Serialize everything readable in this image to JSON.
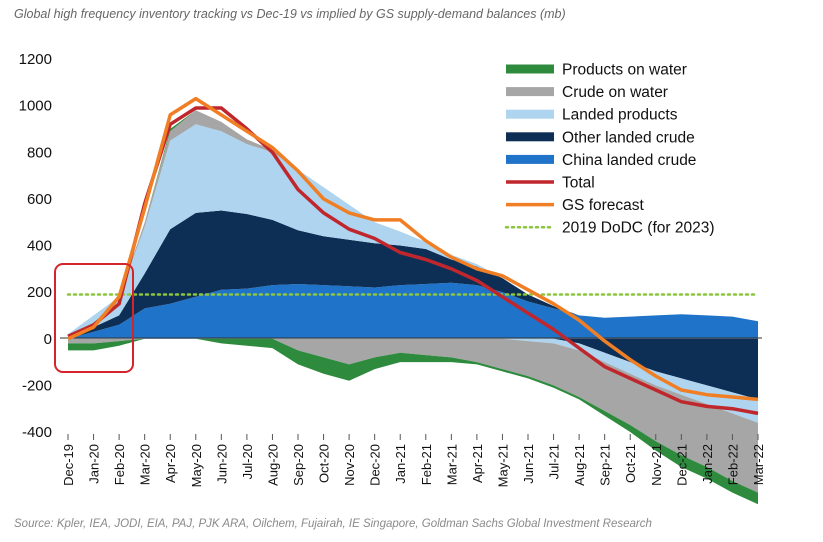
{
  "chart_data": {
    "type": "area",
    "title": "Global high frequency inventory tracking vs Dec-19 vs implied by GS supply-demand balances (mb)",
    "source": "Source: Kpler, IEA, JODI, EIA, PAJ, PJK ARA, Oilchem, Fujairah, IE Singapore, Goldman Sachs Global Investment Research",
    "ylim": [
      -400,
      1200
    ],
    "yticks": [
      "1200",
      "1000",
      "800",
      "600",
      "400",
      "200",
      "0",
      "-200",
      "-400"
    ],
    "ytick_values": [
      1200,
      1000,
      800,
      600,
      400,
      200,
      0,
      -200,
      -400
    ],
    "categories": [
      "Dec-19",
      "Jan-20",
      "Feb-20",
      "Mar-20",
      "Apr-20",
      "May-20",
      "Jun-20",
      "Jul-20",
      "Aug-20",
      "Sep-20",
      "Oct-20",
      "Nov-20",
      "Dec-20",
      "Jan-21",
      "Feb-21",
      "Mar-21",
      "Apr-21",
      "May-21",
      "Jun-21",
      "Jul-21",
      "Aug-21",
      "Sep-21",
      "Oct-21",
      "Nov-21",
      "Dec-21",
      "Jan-22",
      "Feb-22",
      "Mar-22"
    ],
    "colors": {
      "products_on_water": "#2e8b3e",
      "crude_on_water": "#a6a6a6",
      "landed_products": "#aed4ef",
      "other_landed_crude": "#0e2f55",
      "china_landed_crude": "#1f74c9",
      "total": "#c0272d",
      "gs_forecast": "#f07e24",
      "dodc": "#8cc63f",
      "highlight_box": "#d6242c"
    },
    "legend": [
      {
        "key": "products_on_water",
        "label": "Products on water",
        "kind": "area"
      },
      {
        "key": "crude_on_water",
        "label": "Crude on water",
        "kind": "area"
      },
      {
        "key": "landed_products",
        "label": "Landed products",
        "kind": "area"
      },
      {
        "key": "other_landed_crude",
        "label": "Other landed crude",
        "kind": "area"
      },
      {
        "key": "china_landed_crude",
        "label": "China landed crude",
        "kind": "area"
      },
      {
        "key": "total",
        "label": "Total",
        "kind": "line"
      },
      {
        "key": "gs_forecast",
        "label": "GS forecast",
        "kind": "line"
      },
      {
        "key": "dodc",
        "label": "2019 DoDC  (for 2023)",
        "kind": "dotted"
      }
    ],
    "legend_position": "top-right",
    "series": {
      "china_landed_crude": [
        0,
        30,
        60,
        130,
        150,
        180,
        210,
        215,
        230,
        235,
        230,
        225,
        220,
        230,
        235,
        240,
        230,
        200,
        160,
        130,
        100,
        90,
        95,
        100,
        105,
        100,
        95,
        75
      ],
      "other_landed_crude": [
        0,
        20,
        40,
        150,
        320,
        360,
        340,
        320,
        280,
        230,
        210,
        200,
        190,
        170,
        150,
        100,
        80,
        60,
        30,
        10,
        -20,
        -60,
        -100,
        -140,
        -170,
        -200,
        -230,
        -260
      ],
      "landed_products": [
        20,
        50,
        80,
        200,
        380,
        380,
        340,
        300,
        290,
        260,
        210,
        150,
        90,
        60,
        30,
        20,
        10,
        0,
        -10,
        -20,
        -30,
        -40,
        -50,
        -60,
        -70,
        -80,
        -90,
        -100
      ],
      "crude_on_water": [
        -20,
        -20,
        -10,
        20,
        40,
        60,
        40,
        20,
        10,
        -50,
        -80,
        -110,
        -80,
        -60,
        -70,
        -80,
        -100,
        -130,
        -150,
        -180,
        -200,
        -210,
        -220,
        -240,
        -260,
        -270,
        -290,
        -300
      ],
      "products_on_water": [
        -30,
        -30,
        -20,
        0,
        10,
        0,
        -20,
        -30,
        -40,
        -60,
        -70,
        -70,
        -50,
        -40,
        -30,
        -20,
        -10,
        -10,
        -10,
        -10,
        -10,
        -20,
        -30,
        -40,
        -50,
        -50,
        -50,
        -50
      ],
      "total": [
        10,
        60,
        150,
        580,
        920,
        990,
        990,
        900,
        800,
        640,
        540,
        470,
        430,
        370,
        340,
        300,
        250,
        180,
        110,
        40,
        -40,
        -120,
        -170,
        -220,
        -270,
        -290,
        -300,
        -320
      ],
      "gs_forecast": [
        0,
        50,
        180,
        560,
        960,
        1030,
        960,
        890,
        820,
        720,
        600,
        540,
        510,
        510,
        420,
        350,
        300,
        270,
        210,
        150,
        80,
        -10,
        -90,
        -160,
        -220,
        -240,
        -250,
        -260
      ],
      "dodc": 190
    },
    "grid": false
  }
}
